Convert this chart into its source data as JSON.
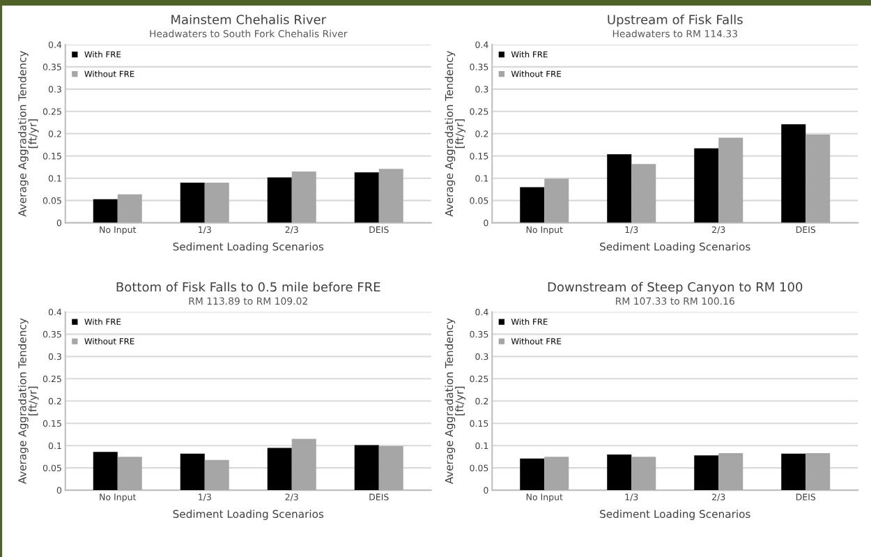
{
  "chart_data": [
    {
      "type": "bar",
      "title": "Mainstem Chehalis River",
      "subtitle": "Headwaters to South Fork Chehalis River",
      "xlabel": "Sediment Loading Scenarios",
      "ylabel": "Average Aggradation Tendency\n[ft/yr]",
      "categories": [
        "No Input",
        "1/3",
        "2/3",
        "DEIS"
      ],
      "series": [
        {
          "name": "With FRE",
          "color": "#000000",
          "values": [
            0.053,
            0.09,
            0.102,
            0.113
          ]
        },
        {
          "name": "Without FRE",
          "color": "#a6a6a6",
          "values": [
            0.064,
            0.09,
            0.115,
            0.121
          ]
        }
      ],
      "ylim": [
        0,
        0.4
      ],
      "yticks": [
        0,
        0.05,
        0.1,
        0.15,
        0.2,
        0.25,
        0.3,
        0.35,
        0.4
      ],
      "grid": "y",
      "legend": "top left"
    },
    {
      "type": "bar",
      "title": "Upstream of Fisk Falls",
      "subtitle": "Headwaters to RM 114.33",
      "xlabel": "Sediment Loading Scenarios",
      "ylabel": "Average Aggradation Tendency\n[ft/yr]",
      "categories": [
        "No Input",
        "1/3",
        "2/3",
        "DEIS"
      ],
      "series": [
        {
          "name": "With FRE",
          "color": "#000000",
          "values": [
            0.08,
            0.154,
            0.167,
            0.221
          ]
        },
        {
          "name": "Without FRE",
          "color": "#a6a6a6",
          "values": [
            0.099,
            0.132,
            0.191,
            0.198
          ]
        }
      ],
      "ylim": [
        0,
        0.4
      ],
      "yticks": [
        0,
        0.05,
        0.1,
        0.15,
        0.2,
        0.25,
        0.3,
        0.35,
        0.4
      ],
      "grid": "y",
      "legend": "top left"
    },
    {
      "type": "bar",
      "title": "Bottom of Fisk Falls to 0.5 mile before FRE",
      "subtitle": "RM 113.89 to RM 109.02",
      "xlabel": "Sediment Loading Scenarios",
      "ylabel": "Average Aggradation Tendency\n[ft/yr]",
      "categories": [
        "No Input",
        "1/3",
        "2/3",
        "DEIS"
      ],
      "series": [
        {
          "name": "With FRE",
          "color": "#000000",
          "values": [
            0.086,
            0.082,
            0.095,
            0.101
          ]
        },
        {
          "name": "Without FRE",
          "color": "#a6a6a6",
          "values": [
            0.075,
            0.068,
            0.115,
            0.099
          ]
        }
      ],
      "ylim": [
        0,
        0.4
      ],
      "yticks": [
        0,
        0.05,
        0.1,
        0.15,
        0.2,
        0.25,
        0.3,
        0.35,
        0.4
      ],
      "grid": "y",
      "legend": "top left"
    },
    {
      "type": "bar",
      "title": "Downstream of Steep Canyon to RM 100",
      "subtitle": "RM 107.33 to RM 100.16",
      "xlabel": "Sediment Loading Scenarios",
      "ylabel": "Average Aggradation Tendency\n[ft/yr]",
      "categories": [
        "No Input",
        "1/3",
        "2/3",
        "DEIS"
      ],
      "series": [
        {
          "name": "With FRE",
          "color": "#000000",
          "values": [
            0.071,
            0.08,
            0.078,
            0.082
          ]
        },
        {
          "name": "Without FRE",
          "color": "#a6a6a6",
          "values": [
            0.075,
            0.075,
            0.083,
            0.083
          ]
        }
      ],
      "ylim": [
        0,
        0.4
      ],
      "yticks": [
        0,
        0.05,
        0.1,
        0.15,
        0.2,
        0.25,
        0.3,
        0.35,
        0.4
      ],
      "grid": "y",
      "legend": "top left"
    }
  ]
}
